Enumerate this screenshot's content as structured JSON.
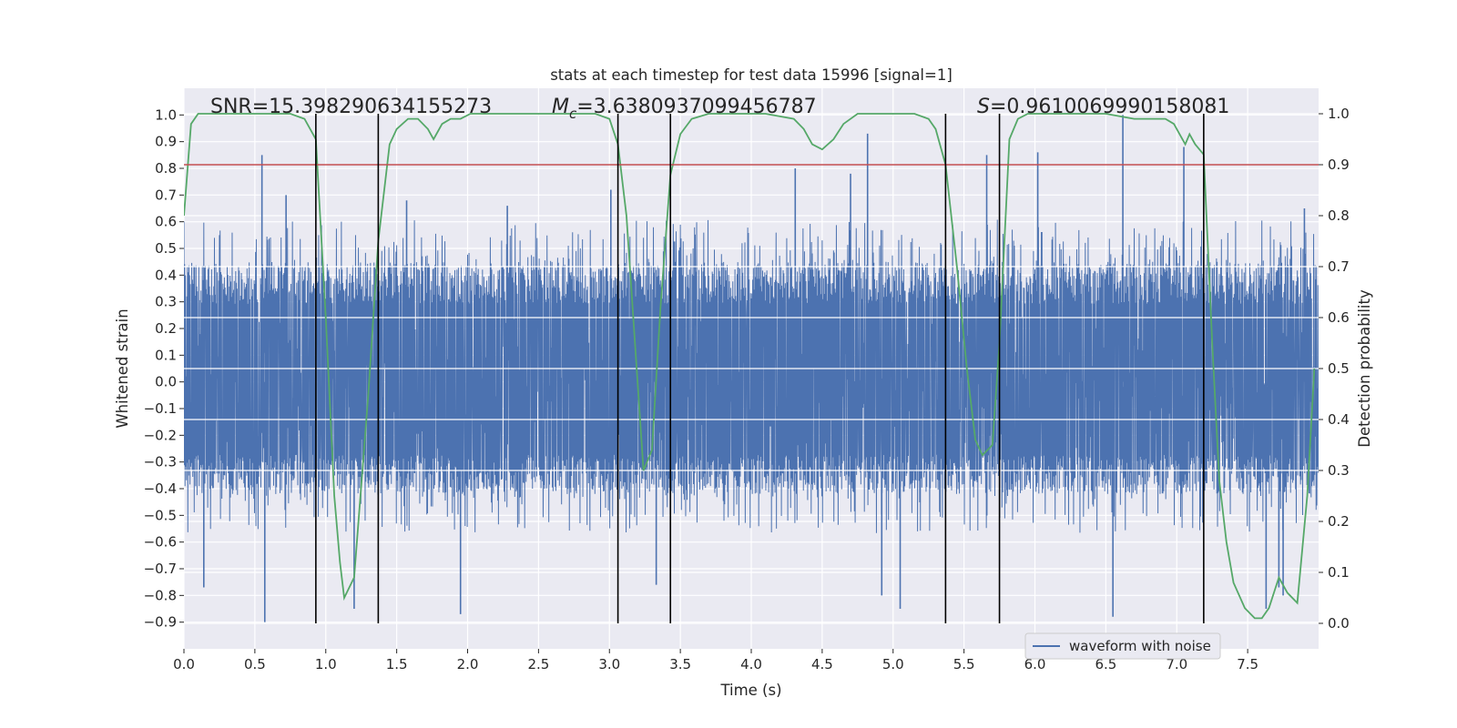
{
  "chart_data": {
    "type": "line",
    "title": "stats at each timestep for test data 15996 [signal=1]",
    "xlabel": "Time (s)",
    "ylabel": "Whitened strain",
    "y2label": "Detection probability",
    "xlim": [
      0.0,
      8.0
    ],
    "ylim": [
      -1.0,
      1.1
    ],
    "y2lim": [
      -0.05,
      1.05
    ],
    "xticks": [
      0.0,
      0.5,
      1.0,
      1.5,
      2.0,
      2.5,
      3.0,
      3.5,
      4.0,
      4.5,
      5.0,
      5.5,
      6.0,
      6.5,
      7.0,
      7.5
    ],
    "xtick_labels": [
      "0.0",
      "0.5",
      "1.0",
      "1.5",
      "2.0",
      "2.5",
      "3.0",
      "3.5",
      "4.0",
      "4.5",
      "5.0",
      "5.5",
      "6.0",
      "6.5",
      "7.0",
      "7.5"
    ],
    "yticks": [
      -0.9,
      -0.8,
      -0.7,
      -0.6,
      -0.5,
      -0.4,
      -0.3,
      -0.2,
      -0.1,
      0.0,
      0.1,
      0.2,
      0.3,
      0.4,
      0.5,
      0.6,
      0.7,
      0.8,
      0.9,
      1.0
    ],
    "ytick_labels": [
      "−0.9",
      "−0.8",
      "−0.7",
      "−0.6",
      "−0.5",
      "−0.4",
      "−0.3",
      "−0.2",
      "−0.1",
      "0.0",
      "0.1",
      "0.2",
      "0.3",
      "0.4",
      "0.5",
      "0.6",
      "0.7",
      "0.8",
      "0.9",
      "1.0"
    ],
    "y2ticks": [
      0.0,
      0.1,
      0.2,
      0.3,
      0.4,
      0.5,
      0.6,
      0.7,
      0.8,
      0.9,
      1.0
    ],
    "y2tick_labels": [
      "0.0",
      "0.1",
      "0.2",
      "0.3",
      "0.4",
      "0.5",
      "0.6",
      "0.7",
      "0.8",
      "0.9",
      "1.0"
    ],
    "grid": true,
    "legend_position": "bottom-right",
    "threshold": {
      "axis": "right",
      "value": 0.9,
      "color": "#c44e52"
    },
    "vertical_lines": [
      0.93,
      1.37,
      3.06,
      3.43,
      5.37,
      5.75,
      7.19
    ],
    "annotations": {
      "snr": "SNR=15.398290634155273",
      "mc_symbol": "M",
      "mc_subscript": "c",
      "mc_value": "=3.6380937099456787",
      "s_symbol": "S",
      "s_value": "=0.9610069990158081"
    },
    "series": [
      {
        "name": "waveform with noise",
        "axis": "left",
        "color": "#4c72b0",
        "style": "dense noise trace",
        "duration": 8.0,
        "envelope": [
          0.45,
          -0.42
        ],
        "peak_spikes": [
          [
            0.55,
            0.85
          ],
          [
            0.57,
            -0.9
          ],
          [
            0.14,
            -0.77
          ],
          [
            0.72,
            0.7
          ],
          [
            1.2,
            -0.85
          ],
          [
            1.95,
            -0.87
          ],
          [
            1.57,
            0.68
          ],
          [
            2.28,
            0.66
          ],
          [
            3.01,
            0.72
          ],
          [
            3.33,
            -0.76
          ],
          [
            4.31,
            0.8
          ],
          [
            4.7,
            0.78
          ],
          [
            4.82,
            0.93
          ],
          [
            4.92,
            -0.8
          ],
          [
            5.05,
            -0.85
          ],
          [
            5.66,
            0.85
          ],
          [
            6.02,
            0.86
          ],
          [
            6.62,
            1.0
          ],
          [
            6.55,
            -0.88
          ],
          [
            7.05,
            0.88
          ],
          [
            7.63,
            -0.85
          ],
          [
            7.72,
            -0.77
          ],
          [
            7.9,
            0.65
          ],
          [
            7.75,
            -0.8
          ]
        ]
      },
      {
        "name": "",
        "axis": "right",
        "color": "#55a868",
        "x": [
          0.0,
          0.05,
          0.1,
          0.2,
          0.4,
          0.6,
          0.75,
          0.85,
          0.93,
          1.0,
          1.06,
          1.1,
          1.13,
          1.2,
          1.3,
          1.37,
          1.45,
          1.5,
          1.58,
          1.65,
          1.72,
          1.76,
          1.82,
          1.88,
          1.95,
          2.02,
          2.1,
          2.3,
          2.5,
          2.7,
          2.9,
          3.0,
          3.06,
          3.12,
          3.18,
          3.24,
          3.3,
          3.36,
          3.43,
          3.5,
          3.58,
          3.7,
          3.9,
          4.1,
          4.3,
          4.37,
          4.43,
          4.5,
          4.58,
          4.65,
          4.75,
          4.85,
          5.0,
          5.15,
          5.25,
          5.3,
          5.37,
          5.45,
          5.52,
          5.58,
          5.63,
          5.7,
          5.75,
          5.82,
          5.88,
          5.95,
          6.1,
          6.3,
          6.5,
          6.7,
          6.78,
          6.85,
          6.92,
          6.98,
          7.02,
          7.06,
          7.09,
          7.13,
          7.19,
          7.25,
          7.3,
          7.35,
          7.4,
          7.48,
          7.55,
          7.6,
          7.65,
          7.72,
          7.78,
          7.85,
          7.92,
          7.97
        ],
        "values": [
          0.8,
          0.98,
          1.0,
          1.0,
          1.0,
          1.0,
          1.0,
          0.99,
          0.95,
          0.6,
          0.25,
          0.12,
          0.05,
          0.09,
          0.45,
          0.75,
          0.94,
          0.97,
          0.99,
          0.99,
          0.97,
          0.95,
          0.98,
          0.99,
          0.99,
          1.0,
          1.0,
          1.0,
          1.0,
          1.0,
          1.0,
          0.99,
          0.94,
          0.8,
          0.55,
          0.3,
          0.34,
          0.62,
          0.88,
          0.96,
          0.99,
          1.0,
          1.0,
          1.0,
          0.99,
          0.97,
          0.94,
          0.93,
          0.95,
          0.98,
          1.0,
          1.0,
          1.0,
          1.0,
          0.99,
          0.97,
          0.9,
          0.7,
          0.5,
          0.36,
          0.33,
          0.35,
          0.55,
          0.95,
          0.99,
          1.0,
          1.0,
          1.0,
          1.0,
          0.99,
          0.99,
          0.99,
          0.99,
          0.98,
          0.96,
          0.94,
          0.96,
          0.94,
          0.92,
          0.55,
          0.28,
          0.16,
          0.08,
          0.03,
          0.01,
          0.01,
          0.03,
          0.09,
          0.06,
          0.04,
          0.25,
          0.5
        ]
      }
    ]
  }
}
